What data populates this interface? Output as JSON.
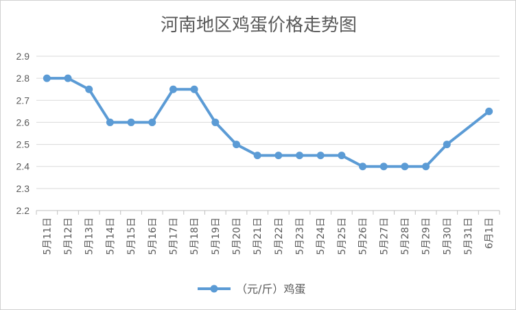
{
  "chart_data": {
    "type": "line",
    "title": "河南地区鸡蛋价格走势图",
    "xlabel": "",
    "ylabel": "",
    "ylim": [
      2.2,
      2.9
    ],
    "yticks": [
      "2.2",
      "2.3",
      "2.4",
      "2.5",
      "2.6",
      "2.7",
      "2.8",
      "2.9"
    ],
    "grid": true,
    "legend_position": "bottom",
    "categories": [
      "5月11日",
      "5月12日",
      "5月13日",
      "5月14日",
      "5月15日",
      "5月16日",
      "5月17日",
      "5月18日",
      "5月19日",
      "5月20日",
      "5月21日",
      "5月22日",
      "5月23日",
      "5月24日",
      "5月25日",
      "5月26日",
      "5月27日",
      "5月28日",
      "5月29日",
      "5月30日",
      "5月31日",
      "6月1日"
    ],
    "series": [
      {
        "name": "（元/斤）鸡蛋",
        "color": "#5b9bd5",
        "values": [
          2.8,
          2.8,
          2.75,
          2.6,
          2.6,
          2.6,
          2.75,
          2.75,
          2.6,
          2.5,
          2.45,
          2.45,
          2.45,
          2.45,
          2.45,
          2.4,
          2.4,
          2.4,
          2.4,
          2.5,
          null,
          2.65
        ]
      }
    ]
  }
}
